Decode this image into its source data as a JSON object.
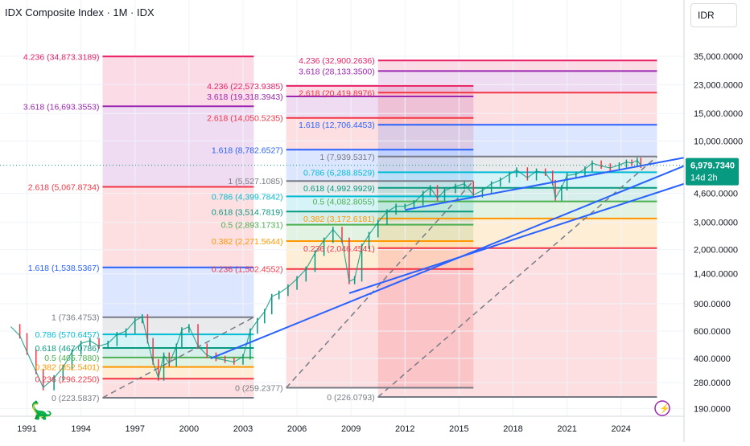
{
  "header": {
    "title": "IDX Composite Index · 1M · IDX",
    "currency": "IDR"
  },
  "price_badge": {
    "value": "6,979.7340",
    "countdown": "14d 2h"
  },
  "colors": {
    "level_4236": "#e91e63",
    "level_3618": "#9c27b0",
    "level_2618": "#f23645",
    "level_1618": "#2962ff",
    "level_1": "#787b86",
    "level_0786": "#00bcd4",
    "level_0618": "#089981",
    "level_05": "#4caf50",
    "level_0382": "#ff9800",
    "level_0236": "#f23645",
    "level_0": "#787b86",
    "trendline": "#2962ff",
    "price_badge": "#089981",
    "candle_up": "#089981",
    "candle_down": "#f23645"
  },
  "chart_data": {
    "type": "line",
    "symbol": "IDX Composite Index",
    "interval": "1M",
    "y_scale": "log",
    "ylim": [
      170,
      50000
    ],
    "xlim": [
      1989.5,
      2027.5
    ],
    "x_ticks": [
      "1991",
      "1994",
      "1997",
      "2000",
      "2003",
      "2006",
      "2009",
      "2012",
      "2015",
      "2018",
      "2021",
      "2024"
    ],
    "y_ticks": [
      "35,000.0000",
      "23,000.0000",
      "15,000.0000",
      "10,000.0000",
      "4,600.0000",
      "3,000.0000",
      "2,000.0000",
      "1,400.0000",
      "900.0000",
      "600.0000",
      "400.0000",
      "280.0000",
      "190.0000"
    ],
    "last_price": 6979.734,
    "price_series": {
      "x": [
        1990.1,
        1990.6,
        1991.0,
        1991.5,
        1991.9,
        1992.5,
        1993.0,
        1993.5,
        1994.0,
        1994.5,
        1995.0,
        1995.5,
        1996.0,
        1996.5,
        1997.0,
        1997.4,
        1997.7,
        1998.0,
        1998.3,
        1998.6,
        1998.9,
        1999.3,
        1999.6,
        2000.0,
        2000.5,
        2001.0,
        2001.5,
        2002.0,
        2002.5,
        2003.0,
        2003.4,
        2003.8,
        2004.2,
        2004.6,
        2005.0,
        2005.5,
        2006.0,
        2006.5,
        2007.0,
        2007.5,
        2008.0,
        2008.5,
        2008.9,
        2009.2,
        2009.6,
        2010.0,
        2010.5,
        2011.0,
        2011.5,
        2012.0,
        2012.5,
        2013.0,
        2013.4,
        2013.8,
        2014.2,
        2014.8,
        2015.3,
        2015.8,
        2016.3,
        2016.8,
        2017.3,
        2017.8,
        2018.2,
        2018.8,
        2019.3,
        2019.8,
        2020.2,
        2020.35,
        2020.7,
        2021.0,
        2021.5,
        2022.0,
        2022.4,
        2022.9,
        2023.4,
        2023.9,
        2024.3,
        2024.6,
        2024.9,
        2025.1
      ],
      "y": [
        640,
        560,
        440,
        330,
        260,
        300,
        350,
        440,
        500,
        520,
        480,
        500,
        570,
        600,
        700,
        740,
        520,
        380,
        300,
        420,
        370,
        480,
        610,
        640,
        480,
        420,
        400,
        390,
        380,
        410,
        600,
        700,
        800,
        1000,
        1050,
        1150,
        1300,
        1500,
        1900,
        2300,
        2700,
        2300,
        1250,
        1300,
        2100,
        2500,
        3000,
        3500,
        3800,
        3800,
        4000,
        4600,
        5000,
        4300,
        4800,
        5100,
        5300,
        4500,
        4800,
        5300,
        5600,
        6100,
        6500,
        5800,
        6400,
        6200,
        5400,
        4300,
        5000,
        6000,
        6100,
        6600,
        7200,
        6900,
        6700,
        7000,
        7300,
        7200,
        7500,
        6980
      ]
    },
    "fib_sets": [
      {
        "levels": [
          {
            "ratio": "4.236",
            "price": 34873.3189,
            "label": "4.236 (34,873.3189)"
          },
          {
            "ratio": "3.618",
            "price": 16693.3553,
            "label": "3.618 (16,693.3553)"
          },
          {
            "ratio": "2.618",
            "price": 5067.8734,
            "label": "2.618 (5,067.8734)"
          },
          {
            "ratio": "1.618",
            "price": 1538.5367,
            "label": "1.618 (1,538.5367)"
          },
          {
            "ratio": "1",
            "price": 736.4753,
            "label": "1 (736.4753)"
          },
          {
            "ratio": "0.786",
            "price": 570.6457,
            "label": "0.786 (570.6457)"
          },
          {
            "ratio": "0.618",
            "price": 467.0786,
            "label": "0.618 (467.0786)"
          },
          {
            "ratio": "0.5",
            "price": 405.788,
            "label": "0.5 (405.7880)"
          },
          {
            "ratio": "0.382",
            "price": 352.5401,
            "label": "0.382 (352.5401)"
          },
          {
            "ratio": "0.236",
            "price": 296.225,
            "label": "0.236 (296.2250)"
          },
          {
            "ratio": "0",
            "price": 223.5837,
            "label": "0 (223.5837)"
          }
        ]
      },
      {
        "levels": [
          {
            "ratio": "4.236",
            "price": 22573.9385,
            "label": "4.236 (22,573.9385)"
          },
          {
            "ratio": "3.618",
            "price": 19318.3943,
            "label": "3.618 (19,318.3943)"
          },
          {
            "ratio": "2.618",
            "price": 14050.5235,
            "label": "2.618 (14,050.5235)"
          },
          {
            "ratio": "1.618",
            "price": 8782.6527,
            "label": "1.618 (8,782.6527)"
          },
          {
            "ratio": "1",
            "price": 5527.1085,
            "label": "1 (5,527.1085)"
          },
          {
            "ratio": "0.786",
            "price": 4399.7842,
            "label": "0.786 (4,399.7842)"
          },
          {
            "ratio": "0.618",
            "price": 3514.7819,
            "label": "0.618 (3,514.7819)"
          },
          {
            "ratio": "0.5",
            "price": 2893.1731,
            "label": "0.5 (2,893.1731)"
          },
          {
            "ratio": "0.382",
            "price": 2271.5644,
            "label": "0.382 (2,271.5644)"
          },
          {
            "ratio": "0.236",
            "price": 1502.4552,
            "label": "0.236 (1,502.4552)"
          },
          {
            "ratio": "0",
            "price": 259.2377,
            "label": "0 (259.2377)"
          }
        ]
      },
      {
        "levels": [
          {
            "ratio": "4.236",
            "price": 32900.2636,
            "label": "4.236 (32,900.2636)"
          },
          {
            "ratio": "3.618",
            "price": 28133.35,
            "label": "3.618 (28,133.3500)"
          },
          {
            "ratio": "2.618",
            "price": 20419.8976,
            "label": "2.618 (20,419.8976)"
          },
          {
            "ratio": "1.618",
            "price": 12706.4453,
            "label": "1.618 (12,706.4453)"
          },
          {
            "ratio": "1",
            "price": 7939.5317,
            "label": "1 (7,939.5317)"
          },
          {
            "ratio": "0.786",
            "price": 6288.8529,
            "label": "0.786 (6,288.8529)"
          },
          {
            "ratio": "0.618",
            "price": 4992.9929,
            "label": "0.618 (4,992.9929)"
          },
          {
            "ratio": "0.5",
            "price": 4082.8055,
            "label": "0.5 (4,082.8055)"
          },
          {
            "ratio": "0.382",
            "price": 3172.6181,
            "label": "0.382 (3,172.6181)"
          },
          {
            "ratio": "0.236",
            "price": 2046.4541,
            "label": "0.236 (2,046.4541)"
          },
          {
            "ratio": "0",
            "price": 226.0793,
            "label": "0 (226.0793)"
          }
        ]
      }
    ],
    "trendlines": [
      {
        "from": [
          2008.9,
          1050
        ],
        "to": [
          2027.5,
          5300
        ]
      },
      {
        "from": [
          2001.2,
          400
        ],
        "to": [
          2027.5,
          6900
        ]
      },
      {
        "from": [
          2012.0,
          3600
        ],
        "to": [
          2027.5,
          7800
        ]
      }
    ]
  }
}
